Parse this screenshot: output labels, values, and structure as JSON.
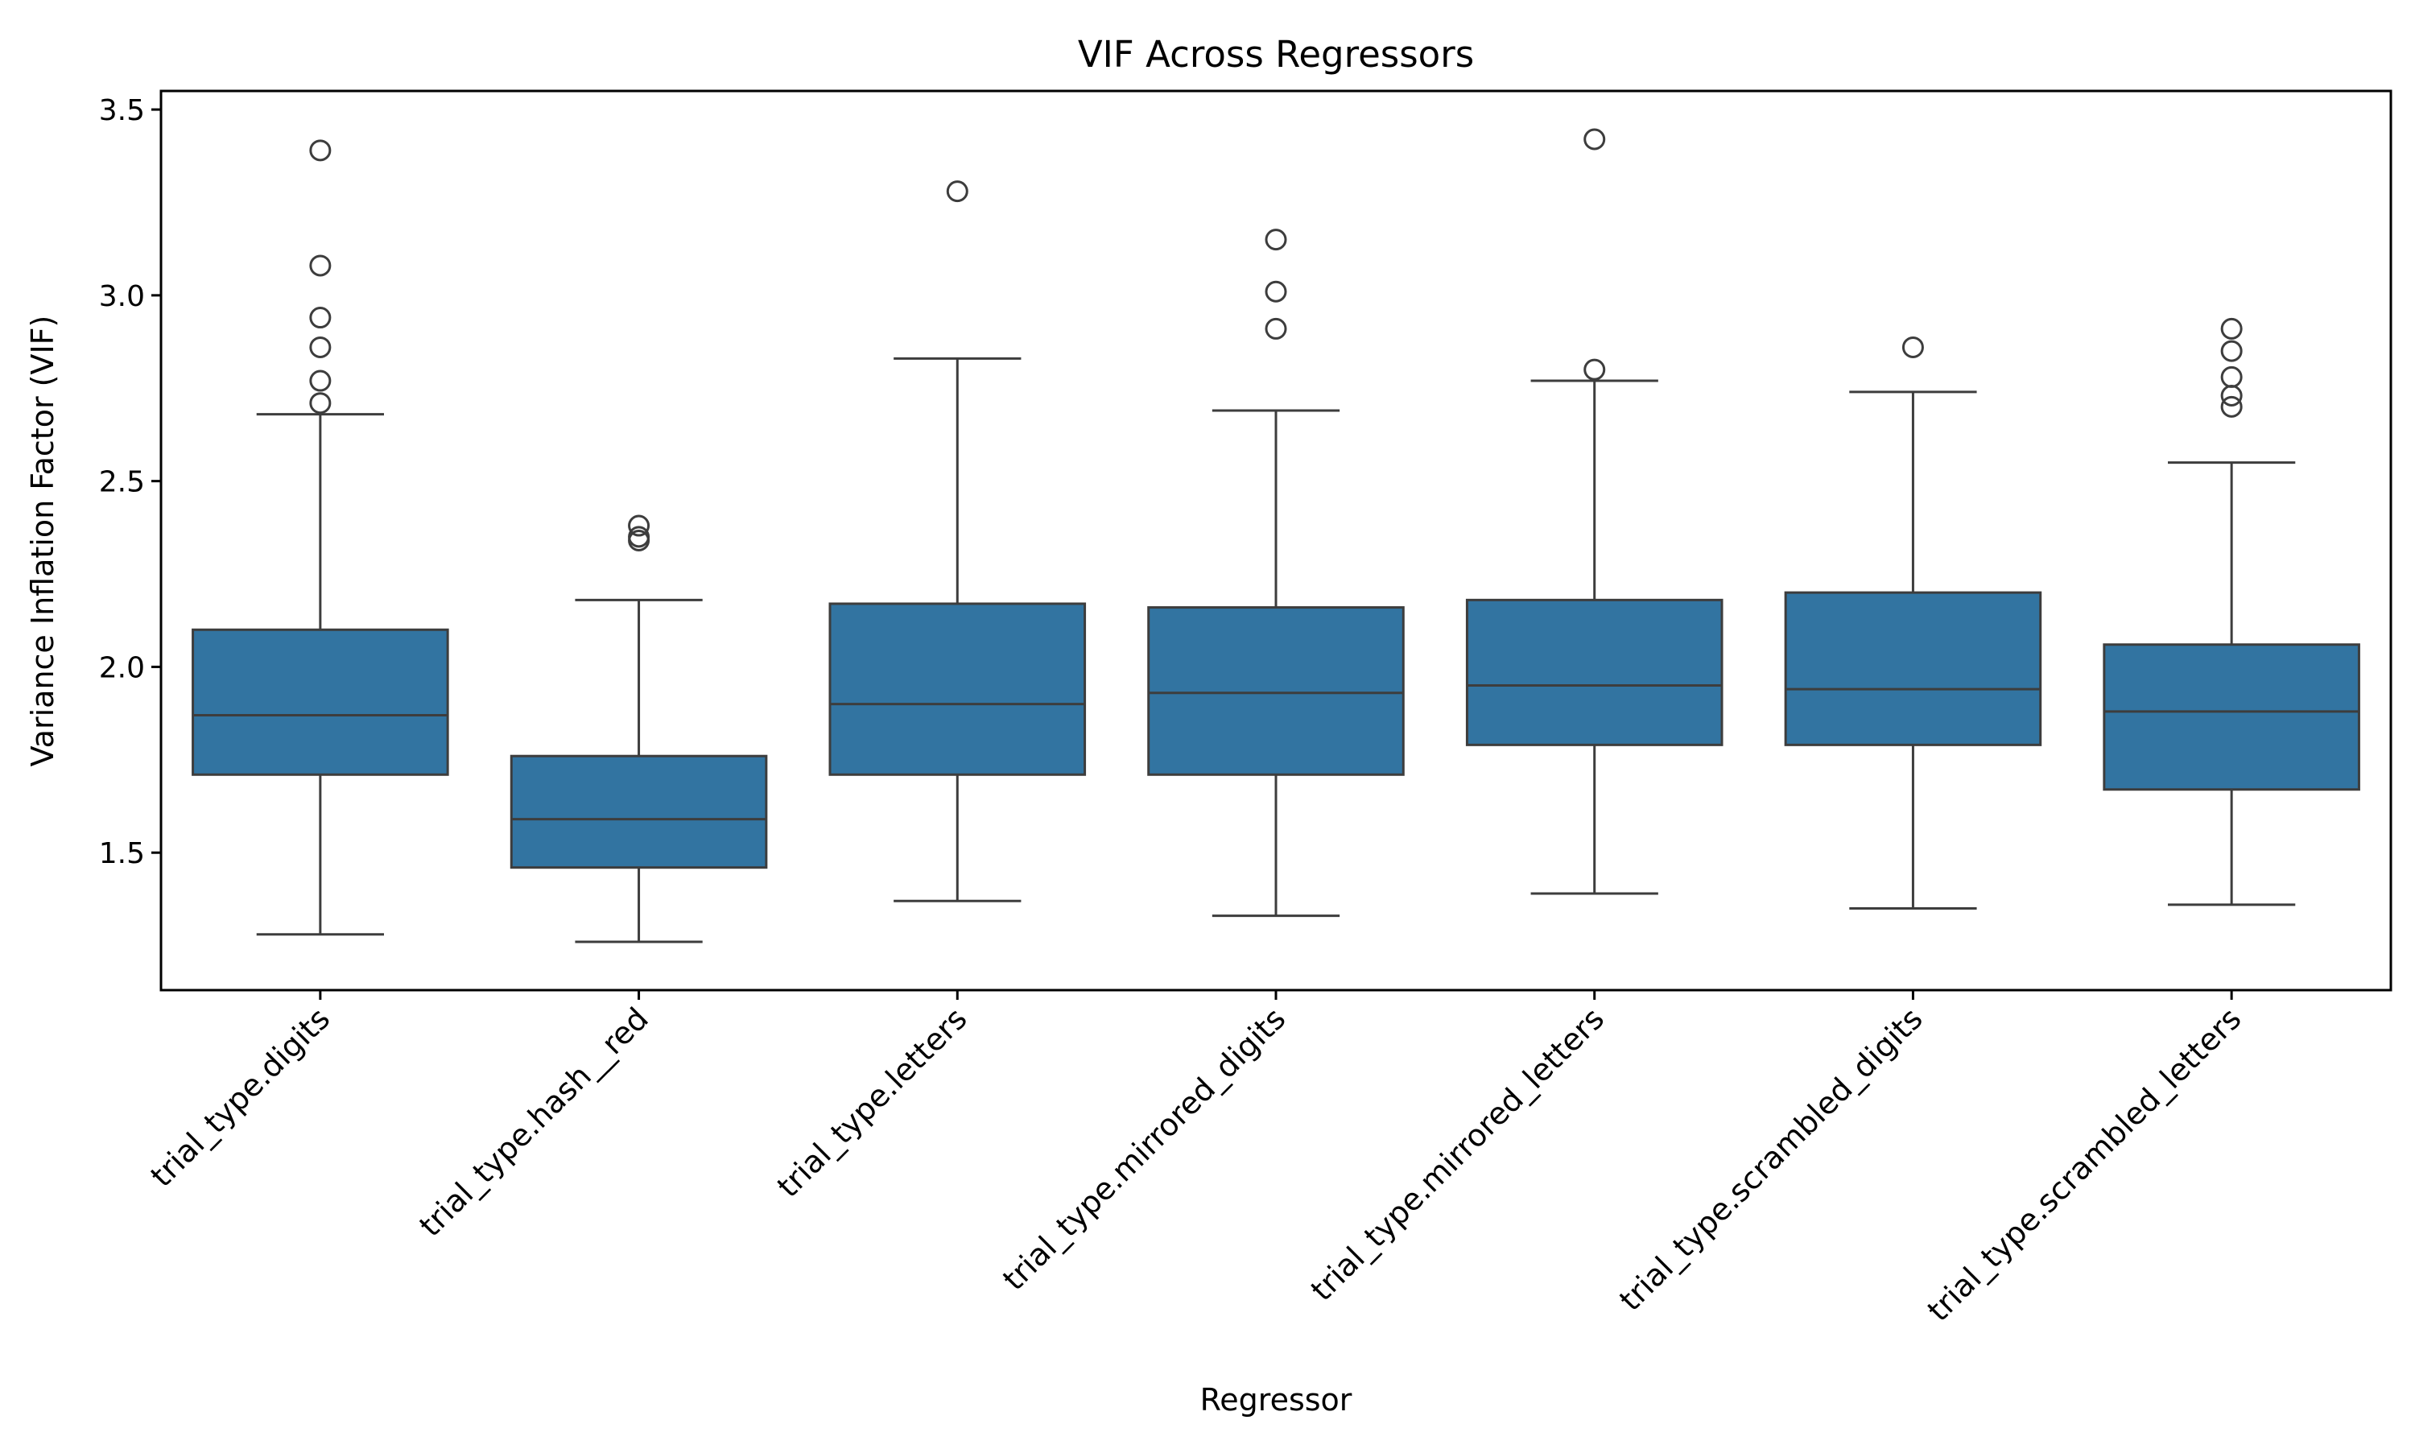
{
  "chart_data": {
    "type": "box",
    "title": "VIF Across Regressors",
    "xlabel": "Regressor",
    "ylabel": "Variance Inflation Factor (VIF)",
    "ylim": [
      1.13,
      3.55
    ],
    "yticks": [
      "1.5",
      "2.0",
      "2.5",
      "3.0",
      "3.5"
    ],
    "grid": false,
    "colors": {
      "box_fill": "#3274a1",
      "line": "#3d3d3d",
      "axis": "#000000"
    },
    "categories": [
      "trial_type.digits",
      "trial_type.hash__red",
      "trial_type.letters",
      "trial_type.mirrored_digits",
      "trial_type.mirrored_letters",
      "trial_type.scrambled_digits",
      "trial_type.scrambled_letters"
    ],
    "boxes": [
      {
        "whisker_low": 1.28,
        "q1": 1.71,
        "median": 1.87,
        "q3": 2.1,
        "whisker_high": 2.68,
        "outliers": [
          2.71,
          2.77,
          2.86,
          2.94,
          3.08,
          3.39
        ]
      },
      {
        "whisker_low": 1.26,
        "q1": 1.46,
        "median": 1.59,
        "q3": 1.76,
        "whisker_high": 2.18,
        "outliers": [
          2.34,
          2.35,
          2.38
        ]
      },
      {
        "whisker_low": 1.37,
        "q1": 1.71,
        "median": 1.9,
        "q3": 2.17,
        "whisker_high": 2.83,
        "outliers": [
          3.28
        ]
      },
      {
        "whisker_low": 1.33,
        "q1": 1.71,
        "median": 1.93,
        "q3": 2.16,
        "whisker_high": 2.69,
        "outliers": [
          2.91,
          3.01,
          3.15
        ]
      },
      {
        "whisker_low": 1.39,
        "q1": 1.79,
        "median": 1.95,
        "q3": 2.18,
        "whisker_high": 2.77,
        "outliers": [
          2.8,
          3.42
        ]
      },
      {
        "whisker_low": 1.35,
        "q1": 1.79,
        "median": 1.94,
        "q3": 2.2,
        "whisker_high": 2.74,
        "outliers": [
          2.86
        ]
      },
      {
        "whisker_low": 1.36,
        "q1": 1.67,
        "median": 1.88,
        "q3": 2.06,
        "whisker_high": 2.55,
        "outliers": [
          2.7,
          2.73,
          2.78,
          2.85,
          2.91
        ]
      }
    ]
  }
}
